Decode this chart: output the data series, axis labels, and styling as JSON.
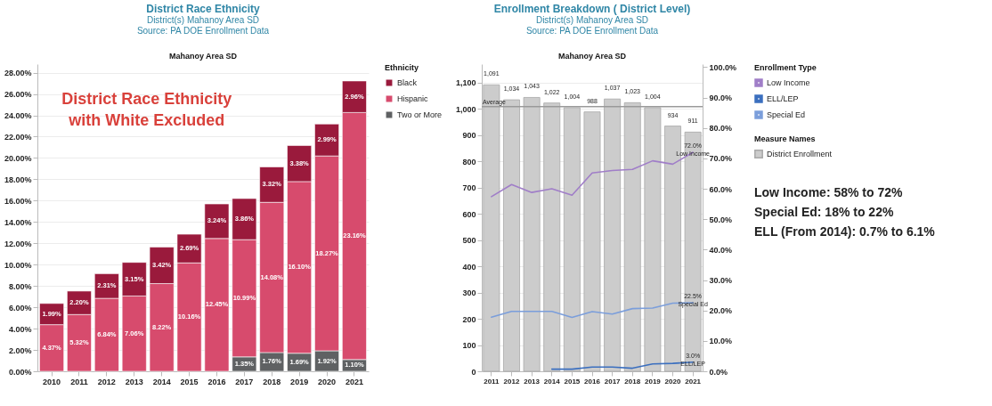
{
  "chart_data": [
    {
      "type": "bar",
      "title": "District Race Ethnicity",
      "subtitle": "District(s) Mahanoy Area SD",
      "annotations": [
        "Source: PA DOE Enrollment Data",
        "Mahanoy Area SD",
        "District Race Ethnicity with White Excluded"
      ],
      "legend_title": "Ethnicity",
      "legend": "top right",
      "grid": "y",
      "stacked": true,
      "categories": [
        "2010",
        "2011",
        "2012",
        "2013",
        "2014",
        "2015",
        "2016",
        "2017",
        "2018",
        "2019",
        "2020",
        "2021"
      ],
      "series": [
        {
          "name": "Two or More",
          "color": "#5f6163",
          "values": [
            null,
            null,
            null,
            null,
            null,
            null,
            null,
            1.35,
            1.76,
            1.69,
            1.92,
            1.1
          ],
          "value_labels": [
            null,
            null,
            null,
            null,
            null,
            null,
            null,
            "1.35%",
            "1.76%",
            "1.69%",
            "1.92%",
            "1.10%"
          ]
        },
        {
          "name": "Hispanic",
          "color": "#d74b6d",
          "values": [
            4.37,
            5.32,
            6.84,
            7.06,
            8.22,
            10.16,
            12.45,
            10.99,
            14.08,
            16.1,
            18.27,
            23.16
          ],
          "value_labels": [
            "4.37%",
            "5.32%",
            "6.84%",
            "7.06%",
            "8.22%",
            "10.16%",
            "12.45%",
            "10.99%",
            "14.08%",
            "16.10%",
            "18.27%",
            "23.16%"
          ]
        },
        {
          "name": "Black",
          "color": "#9a1a3c",
          "values": [
            1.99,
            2.2,
            2.31,
            3.15,
            3.42,
            2.69,
            3.24,
            3.86,
            3.32,
            3.38,
            2.99,
            2.96
          ],
          "value_labels": [
            "1.99%",
            "2.20%",
            "2.31%",
            "3.15%",
            "3.42%",
            "2.69%",
            "3.24%",
            "3.86%",
            "3.32%",
            "3.38%",
            "2.99%",
            "2.96%"
          ]
        }
      ],
      "ylim": [
        0,
        28.8
      ],
      "yticks": [
        {
          "value": 0,
          "label": "0.00%"
        },
        {
          "value": 2,
          "label": "2.00%"
        },
        {
          "value": 4,
          "label": "4.00%"
        },
        {
          "value": 6,
          "label": "6.00%"
        },
        {
          "value": 8,
          "label": "8.00%"
        },
        {
          "value": 10,
          "label": "10.00%"
        },
        {
          "value": 12,
          "label": "12.00%"
        },
        {
          "value": 14,
          "label": "14.00%"
        },
        {
          "value": 16,
          "label": "16.00%"
        },
        {
          "value": 18,
          "label": "18.00%"
        },
        {
          "value": 20,
          "label": "20.00%"
        },
        {
          "value": 22,
          "label": "22.00%"
        },
        {
          "value": 24,
          "label": "24.00%"
        },
        {
          "value": 26,
          "label": "26.00%"
        },
        {
          "value": 28,
          "label": "28.00%"
        }
      ]
    },
    {
      "type": "bar",
      "title": "Enrollment Breakdown ( District Level)",
      "subtitle": "District(s) Mahanoy Area SD",
      "annotations": [
        "Source: PA DOE Enrollment Data",
        "Mahanoy Area SD",
        "Low Income: 58% to 72%",
        "Special Ed: 18% to 22%",
        "ELL (From 2014): 0.7% to 6.1%"
      ],
      "legend_title": [
        "Enrollment Type",
        "Measure Names"
      ],
      "legend": "top right",
      "grid": "y",
      "categories": [
        "2011",
        "2012",
        "2013",
        "2014",
        "2015",
        "2016",
        "2017",
        "2018",
        "2019",
        "2020",
        "2021"
      ],
      "series": [
        {
          "name": "District Enrollment",
          "type": "bar",
          "color": "#cccccc",
          "values": [
            1091,
            1034,
            1043,
            1022,
            1004,
            988,
            1037,
            1023,
            1004,
            934,
            911
          ],
          "value_labels": [
            "1,091",
            "1,034",
            "1,043",
            "1,022",
            "1,004",
            "988",
            "1,037",
            "1,023",
            "1,004",
            "934",
            "911"
          ]
        },
        {
          "name": "Low Income",
          "type": "line",
          "axis": "y2",
          "color": "#a07ec8",
          "values": [
            57.4,
            61.4,
            58.8,
            60.0,
            57.9,
            65.2,
            66.0,
            66.4,
            69.2,
            68.1,
            72.0
          ],
          "value_labels": [
            null,
            null,
            null,
            null,
            null,
            null,
            null,
            null,
            null,
            null,
            "72.0%"
          ]
        },
        {
          "name": "ELL/LEP",
          "type": "line",
          "axis": "y2",
          "color": "#3b6fbf",
          "values": [
            null,
            null,
            null,
            0.7,
            0.7,
            1.4,
            1.4,
            1.0,
            2.4,
            2.6,
            3.0
          ],
          "value_labels": [
            null,
            null,
            null,
            null,
            null,
            null,
            null,
            null,
            null,
            null,
            "3.0%"
          ]
        },
        {
          "name": "Special Ed",
          "type": "line",
          "axis": "y2",
          "color": "#7b9edb",
          "values": [
            17.8,
            19.7,
            19.7,
            19.7,
            17.7,
            19.6,
            18.8,
            20.6,
            20.8,
            22.4,
            22.5
          ],
          "value_labels": [
            null,
            null,
            null,
            null,
            null,
            null,
            null,
            null,
            null,
            null,
            "22.5%"
          ]
        }
      ],
      "ylim": [
        0,
        1170
      ],
      "yticks": [
        0,
        100,
        200,
        300,
        400,
        500,
        600,
        700,
        800,
        900,
        {
          "value": 1000,
          "label": "1,000"
        },
        {
          "value": 1100,
          "label": "1,100"
        }
      ],
      "y2lim": [
        0,
        101
      ],
      "y2ticks": [
        {
          "value": 0,
          "label": "0.0%"
        },
        {
          "value": 10,
          "label": "10.0%"
        },
        {
          "value": 20,
          "label": "20.0%"
        },
        {
          "value": 30,
          "label": "30.0%"
        },
        {
          "value": 40,
          "label": "40.0%"
        },
        {
          "value": 50,
          "label": "50.0%"
        },
        {
          "value": 60,
          "label": "60.0%"
        },
        {
          "value": 70,
          "label": "70.0%"
        },
        {
          "value": 80,
          "label": "80.0%"
        },
        {
          "value": 90,
          "label": "90.0%"
        },
        {
          "value": 100,
          "label": "100.0%"
        }
      ],
      "ref_lines": [
        {
          "axis": "y",
          "value": 1008,
          "label": "Average",
          "color": "#9a9a9a"
        }
      ]
    }
  ]
}
